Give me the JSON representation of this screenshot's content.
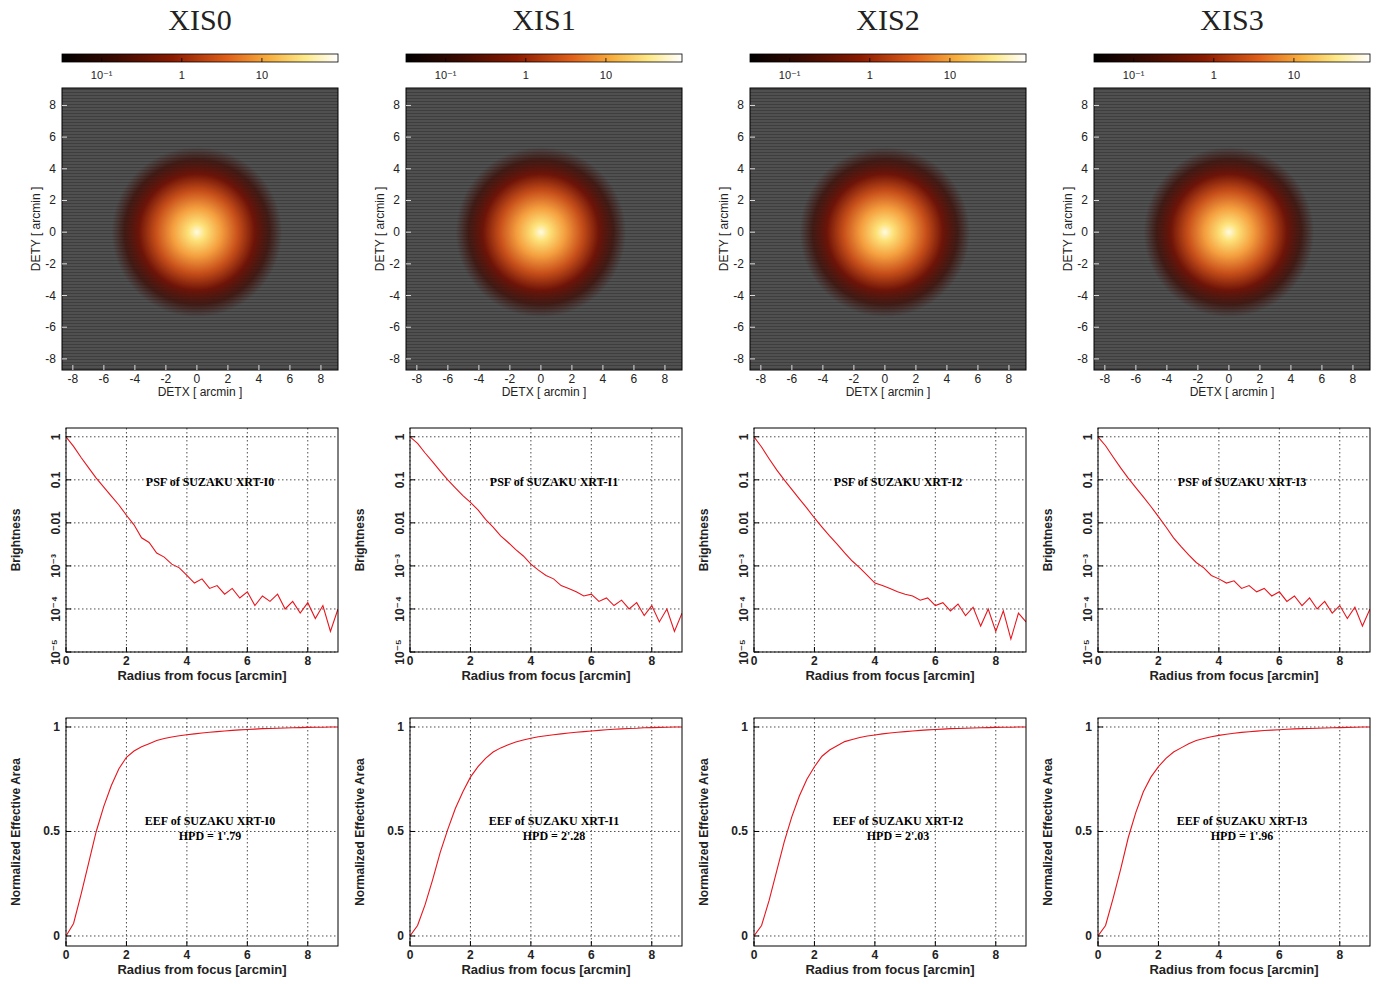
{
  "chart_data": [
    {
      "type": "image",
      "title": "XIS0",
      "x_label": "DETX [ arcmin ]",
      "y_label": "DETY [ arcmin ]",
      "xlim": [
        -8.7,
        9.1
      ],
      "ylim": [
        -8.7,
        9.1
      ],
      "xticks": [
        -8,
        -6,
        -4,
        -2,
        0,
        2,
        4,
        6,
        8
      ],
      "yticks": [
        -8,
        -6,
        -4,
        -2,
        0,
        2,
        4,
        6,
        8
      ],
      "grid": false,
      "colorbar": {
        "range": [
          0.032,
          89
        ],
        "ticks": [
          {
            "value": 0.1,
            "label": "10⁻¹"
          },
          1,
          10
        ]
      }
    },
    {
      "type": "image",
      "title": "XIS1",
      "x_label": "DETX [ arcmin ]",
      "y_label": "DETY [ arcmin ]",
      "xlim": [
        -8.7,
        9.1
      ],
      "ylim": [
        -8.7,
        9.1
      ],
      "xticks": [
        -8,
        -6,
        -4,
        -2,
        0,
        2,
        4,
        6,
        8
      ],
      "yticks": [
        -8,
        -6,
        -4,
        -2,
        0,
        2,
        4,
        6,
        8
      ],
      "grid": false,
      "colorbar": {
        "range": [
          0.032,
          89
        ],
        "ticks": [
          {
            "value": 0.1,
            "label": "10⁻¹"
          },
          1,
          10
        ]
      }
    },
    {
      "type": "image",
      "title": "XIS2",
      "x_label": "DETX [ arcmin ]",
      "y_label": "DETY [ arcmin ]",
      "xlim": [
        -8.7,
        9.1
      ],
      "ylim": [
        -8.7,
        9.1
      ],
      "xticks": [
        -8,
        -6,
        -4,
        -2,
        0,
        2,
        4,
        6,
        8
      ],
      "yticks": [
        -8,
        -6,
        -4,
        -2,
        0,
        2,
        4,
        6,
        8
      ],
      "grid": false,
      "colorbar": {
        "range": [
          0.032,
          89
        ],
        "ticks": [
          {
            "value": 0.1,
            "label": "10⁻¹"
          },
          1,
          10
        ]
      }
    },
    {
      "type": "image",
      "title": "XIS3",
      "x_label": "DETX [ arcmin ]",
      "y_label": "DETY [ arcmin ]",
      "xlim": [
        -8.7,
        9.1
      ],
      "ylim": [
        -8.7,
        9.1
      ],
      "xticks": [
        -8,
        -6,
        -4,
        -2,
        0,
        2,
        4,
        6,
        8
      ],
      "yticks": [
        -8,
        -6,
        -4,
        -2,
        0,
        2,
        4,
        6,
        8
      ],
      "grid": false,
      "colorbar": {
        "range": [
          0.032,
          89
        ],
        "ticks": [
          {
            "value": 0.1,
            "label": "10⁻¹"
          },
          1,
          10
        ]
      }
    },
    {
      "type": "line",
      "log": "y",
      "grid": true,
      "color": "#e8141c",
      "annotations": [
        "PSF of SUZAKU XRT-I0"
      ],
      "x_label": "Radius from focus [arcmin]",
      "y_label": "Brightness",
      "xlim": [
        0,
        9
      ],
      "ylim": [
        1e-05,
        1.6
      ],
      "xticks": [
        0,
        2,
        4,
        6,
        8
      ],
      "yticks": [
        {
          "value": 1e-05,
          "label": "10⁻⁵"
        },
        {
          "value": 0.0001,
          "label": "10⁻⁴"
        },
        {
          "value": 0.001,
          "label": "10⁻³"
        },
        0.01,
        0.1,
        1
      ],
      "x": [
        0,
        0.25,
        0.5,
        0.75,
        1,
        1.25,
        1.5,
        1.75,
        2,
        2.25,
        2.5,
        2.75,
        3,
        3.25,
        3.5,
        3.75,
        4,
        4.25,
        4.5,
        4.75,
        5,
        5.25,
        5.5,
        5.75,
        6,
        6.25,
        6.5,
        6.75,
        7,
        7.25,
        7.5,
        7.75,
        8,
        8.25,
        8.5,
        8.75,
        9
      ],
      "values": [
        1,
        0.6,
        0.33,
        0.19,
        0.11,
        0.068,
        0.042,
        0.026,
        0.015,
        0.009,
        0.0045,
        0.0035,
        0.002,
        0.0016,
        0.0011,
        0.0009,
        0.0006,
        0.0004,
        0.0005,
        0.0003,
        0.00035,
        0.00022,
        0.0003,
        0.00018,
        0.00025,
        0.00012,
        0.0002,
        0.00015,
        0.00022,
        0.0001,
        0.00015,
        8e-05,
        0.00014,
        6e-05,
        0.00012,
        3e-05,
        0.0001
      ]
    },
    {
      "type": "line",
      "log": "y",
      "grid": true,
      "color": "#e8141c",
      "annotations": [
        "PSF of SUZAKU XRT-I1"
      ],
      "x_label": "Radius from focus [arcmin]",
      "y_label": "Brightness",
      "xlim": [
        0,
        9
      ],
      "ylim": [
        1e-05,
        1.6
      ],
      "xticks": [
        0,
        2,
        4,
        6,
        8
      ],
      "yticks": [
        {
          "value": 1e-05,
          "label": "10⁻⁵"
        },
        {
          "value": 0.0001,
          "label": "10⁻⁴"
        },
        {
          "value": 0.001,
          "label": "10⁻³"
        },
        0.01,
        0.1,
        1
      ],
      "x": [
        0,
        0.25,
        0.5,
        0.75,
        1,
        1.25,
        1.5,
        1.75,
        2,
        2.25,
        2.5,
        2.75,
        3,
        3.25,
        3.5,
        3.75,
        4,
        4.25,
        4.5,
        4.75,
        5,
        5.25,
        5.5,
        5.75,
        6,
        6.25,
        6.5,
        6.75,
        7,
        7.25,
        7.5,
        7.75,
        8,
        8.25,
        8.5,
        8.75,
        9
      ],
      "values": [
        1,
        0.7,
        0.42,
        0.26,
        0.16,
        0.1,
        0.065,
        0.043,
        0.03,
        0.02,
        0.012,
        0.008,
        0.005,
        0.0035,
        0.0024,
        0.0017,
        0.0011,
        0.0008,
        0.0006,
        0.0005,
        0.00035,
        0.0003,
        0.00025,
        0.0002,
        0.00022,
        0.00015,
        0.00018,
        0.00012,
        0.00016,
        0.0001,
        0.00014,
        7e-05,
        0.00012,
        5e-05,
        0.0001,
        3e-05,
        8e-05
      ]
    },
    {
      "type": "line",
      "log": "y",
      "grid": true,
      "color": "#e8141c",
      "annotations": [
        "PSF of SUZAKU XRT-I2"
      ],
      "x_label": "Radius from focus [arcmin]",
      "y_label": "Brightness",
      "xlim": [
        0,
        9
      ],
      "ylim": [
        1e-05,
        1.6
      ],
      "xticks": [
        0,
        2,
        4,
        6,
        8
      ],
      "yticks": [
        {
          "value": 1e-05,
          "label": "10⁻⁵"
        },
        {
          "value": 0.0001,
          "label": "10⁻⁴"
        },
        {
          "value": 0.001,
          "label": "10⁻³"
        },
        0.01,
        0.1,
        1
      ],
      "x": [
        0,
        0.25,
        0.5,
        0.75,
        1,
        1.25,
        1.5,
        1.75,
        2,
        2.25,
        2.5,
        2.75,
        3,
        3.25,
        3.5,
        3.75,
        4,
        4.25,
        4.5,
        4.75,
        5,
        5.25,
        5.5,
        5.75,
        6,
        6.25,
        6.5,
        6.75,
        7,
        7.25,
        7.5,
        7.75,
        8,
        8.25,
        8.5,
        8.75,
        9
      ],
      "values": [
        1,
        0.58,
        0.31,
        0.17,
        0.1,
        0.06,
        0.036,
        0.022,
        0.013,
        0.008,
        0.005,
        0.0032,
        0.002,
        0.0013,
        0.0009,
        0.0006,
        0.0004,
        0.00035,
        0.0003,
        0.00025,
        0.00022,
        0.0002,
        0.00016,
        0.00018,
        0.00012,
        0.00014,
        9e-05,
        0.00013,
        7e-05,
        0.00011,
        4e-05,
        0.0001,
        3e-05,
        9e-05,
        2e-05,
        8e-05,
        5e-05
      ]
    },
    {
      "type": "line",
      "log": "y",
      "grid": true,
      "color": "#e8141c",
      "annotations": [
        "PSF of SUZAKU XRT-I3"
      ],
      "x_label": "Radius from focus [arcmin]",
      "y_label": "Brightness",
      "xlim": [
        0,
        9
      ],
      "ylim": [
        1e-05,
        1.6
      ],
      "xticks": [
        0,
        2,
        4,
        6,
        8
      ],
      "yticks": [
        {
          "value": 1e-05,
          "label": "10⁻⁵"
        },
        {
          "value": 0.0001,
          "label": "10⁻⁴"
        },
        {
          "value": 0.001,
          "label": "10⁻³"
        },
        0.01,
        0.1,
        1
      ],
      "x": [
        0,
        0.25,
        0.5,
        0.75,
        1,
        1.25,
        1.5,
        1.75,
        2,
        2.25,
        2.5,
        2.75,
        3,
        3.25,
        3.5,
        3.75,
        4,
        4.25,
        4.5,
        4.75,
        5,
        5.25,
        5.5,
        5.75,
        6,
        6.25,
        6.5,
        6.75,
        7,
        7.25,
        7.5,
        7.75,
        8,
        8.25,
        8.5,
        8.75,
        9
      ],
      "values": [
        1,
        0.62,
        0.34,
        0.19,
        0.11,
        0.066,
        0.04,
        0.024,
        0.014,
        0.008,
        0.0045,
        0.0028,
        0.0018,
        0.0012,
        0.0009,
        0.0006,
        0.0005,
        0.0004,
        0.00045,
        0.0003,
        0.00035,
        0.00025,
        0.0003,
        0.0002,
        0.00025,
        0.00015,
        0.0002,
        0.00012,
        0.00018,
        0.0001,
        0.00015,
        8e-05,
        0.00012,
        6e-05,
        0.00011,
        4e-05,
        0.0001
      ]
    },
    {
      "type": "line",
      "grid": true,
      "color": "#e8141c",
      "annotations": [
        "EEF of SUZAKU XRT-I0",
        "HPD = 1'.79"
      ],
      "x_label": "Radius from focus [arcmin]",
      "y_label": "Normalized Effective Area",
      "xlim": [
        0,
        9
      ],
      "ylim": [
        -0.048,
        1.043
      ],
      "xticks": [
        0,
        2,
        4,
        6,
        8
      ],
      "yticks": [
        0,
        0.5,
        1
      ],
      "x": [
        0,
        0.25,
        0.5,
        0.75,
        1,
        1.25,
        1.5,
        1.75,
        2,
        2.25,
        2.5,
        2.75,
        3,
        3.25,
        3.5,
        3.75,
        4,
        4.25,
        4.5,
        4.75,
        5,
        5.25,
        5.5,
        5.75,
        6,
        6.25,
        6.5,
        6.75,
        7,
        7.25,
        7.5,
        7.75,
        8,
        8.25,
        8.5,
        8.75,
        9
      ],
      "values": [
        0,
        0.06,
        0.2,
        0.35,
        0.5,
        0.62,
        0.72,
        0.8,
        0.855,
        0.885,
        0.905,
        0.92,
        0.935,
        0.945,
        0.952,
        0.958,
        0.963,
        0.967,
        0.971,
        0.975,
        0.978,
        0.981,
        0.984,
        0.986,
        0.988,
        0.99,
        0.992,
        0.993,
        0.994,
        0.995,
        0.996,
        0.997,
        0.998,
        0.999,
        0.999,
        1,
        1
      ]
    },
    {
      "type": "line",
      "grid": true,
      "color": "#e8141c",
      "annotations": [
        "EEF of SUZAKU XRT-I1",
        "HPD = 2'.28"
      ],
      "x_label": "Radius from focus [arcmin]",
      "y_label": "Normalized Effective Area",
      "xlim": [
        0,
        9
      ],
      "ylim": [
        -0.048,
        1.043
      ],
      "xticks": [
        0,
        2,
        4,
        6,
        8
      ],
      "yticks": [
        0,
        0.5,
        1
      ],
      "x": [
        0,
        0.25,
        0.5,
        0.75,
        1,
        1.25,
        1.5,
        1.75,
        2,
        2.25,
        2.5,
        2.75,
        3,
        3.25,
        3.5,
        3.75,
        4,
        4.25,
        4.5,
        4.75,
        5,
        5.25,
        5.5,
        5.75,
        6,
        6.25,
        6.5,
        6.75,
        7,
        7.25,
        7.5,
        7.75,
        8,
        8.25,
        8.5,
        8.75,
        9
      ],
      "values": [
        0,
        0.05,
        0.15,
        0.27,
        0.4,
        0.51,
        0.61,
        0.69,
        0.76,
        0.81,
        0.85,
        0.88,
        0.9,
        0.915,
        0.928,
        0.938,
        0.946,
        0.953,
        0.958,
        0.963,
        0.967,
        0.971,
        0.975,
        0.978,
        0.981,
        0.984,
        0.987,
        0.989,
        0.991,
        0.993,
        0.994,
        0.996,
        0.997,
        0.998,
        0.999,
        1,
        1
      ]
    },
    {
      "type": "line",
      "grid": true,
      "color": "#e8141c",
      "annotations": [
        "EEF of SUZAKU XRT-I2",
        "HPD = 2'.03"
      ],
      "x_label": "Radius from focus [arcmin]",
      "y_label": "Normalized Effective Area",
      "xlim": [
        0,
        9
      ],
      "ylim": [
        -0.048,
        1.043
      ],
      "xticks": [
        0,
        2,
        4,
        6,
        8
      ],
      "yticks": [
        0,
        0.5,
        1
      ],
      "x": [
        0,
        0.25,
        0.5,
        0.75,
        1,
        1.25,
        1.5,
        1.75,
        2,
        2.25,
        2.5,
        2.75,
        3,
        3.25,
        3.5,
        3.75,
        4,
        4.25,
        4.5,
        4.75,
        5,
        5.25,
        5.5,
        5.75,
        6,
        6.25,
        6.5,
        6.75,
        7,
        7.25,
        7.5,
        7.75,
        8,
        8.25,
        8.5,
        8.75,
        9
      ],
      "values": [
        0,
        0.05,
        0.17,
        0.31,
        0.45,
        0.57,
        0.67,
        0.75,
        0.81,
        0.86,
        0.89,
        0.91,
        0.93,
        0.94,
        0.95,
        0.957,
        0.962,
        0.967,
        0.971,
        0.975,
        0.978,
        0.981,
        0.984,
        0.986,
        0.988,
        0.99,
        0.992,
        0.993,
        0.994,
        0.995,
        0.996,
        0.997,
        0.998,
        0.999,
        0.999,
        1,
        1
      ]
    },
    {
      "type": "line",
      "grid": true,
      "color": "#e8141c",
      "annotations": [
        "EEF of SUZAKU XRT-I3",
        "HPD = 1'.96"
      ],
      "x_label": "Radius from focus [arcmin]",
      "y_label": "Normalized Effective Area",
      "xlim": [
        0,
        9
      ],
      "ylim": [
        -0.048,
        1.043
      ],
      "xticks": [
        0,
        2,
        4,
        6,
        8
      ],
      "yticks": [
        0,
        0.5,
        1
      ],
      "x": [
        0,
        0.25,
        0.5,
        0.75,
        1,
        1.25,
        1.5,
        1.75,
        2,
        2.25,
        2.5,
        2.75,
        3,
        3.25,
        3.5,
        3.75,
        4,
        4.25,
        4.5,
        4.75,
        5,
        5.25,
        5.5,
        5.75,
        6,
        6.25,
        6.5,
        6.75,
        7,
        7.25,
        7.5,
        7.75,
        8,
        8.25,
        8.5,
        8.75,
        9
      ],
      "values": [
        0,
        0.05,
        0.18,
        0.32,
        0.47,
        0.59,
        0.69,
        0.76,
        0.81,
        0.85,
        0.88,
        0.9,
        0.92,
        0.935,
        0.945,
        0.953,
        0.96,
        0.965,
        0.97,
        0.974,
        0.977,
        0.98,
        0.983,
        0.985,
        0.987,
        0.989,
        0.991,
        0.992,
        0.993,
        0.994,
        0.995,
        0.996,
        0.997,
        0.998,
        0.999,
        1,
        1
      ]
    }
  ]
}
